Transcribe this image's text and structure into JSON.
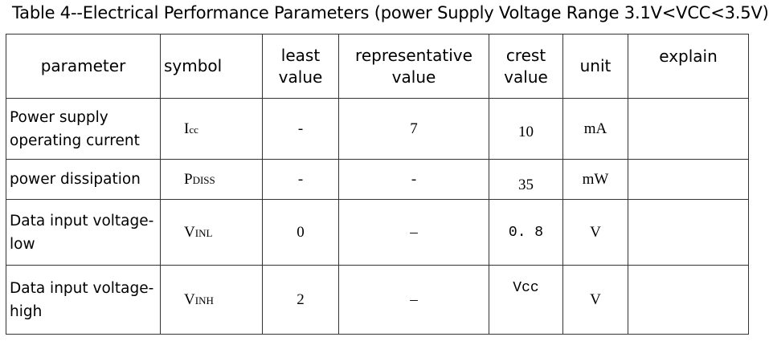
{
  "title": "Table 4--Electrical Performance Parameters (power Supply Voltage Range 3.1V<VCC<3.5V)",
  "headers": {
    "parameter": "parameter",
    "symbol": "symbol",
    "least_value": "least value",
    "representative_value": "representative value",
    "crest_value": "crest value",
    "unit": "unit",
    "explain": "explain"
  },
  "rows": [
    {
      "parameter": "Power  supply operating current",
      "symbol_main": "I",
      "symbol_sub": "cc",
      "least": "-",
      "representative": "7",
      "crest": "10",
      "unit": "mA",
      "explain": ""
    },
    {
      "parameter": "power dissipation",
      "symbol_main": "P",
      "symbol_sub": "DISS",
      "least": "-",
      "representative": "-",
      "crest": "35",
      "unit": "mW",
      "explain": ""
    },
    {
      "parameter": "Data input voltage-low",
      "symbol_main": "V",
      "symbol_sub": "INL",
      "least": "0",
      "representative": "–",
      "crest": "0. 8",
      "unit": "V",
      "explain": ""
    },
    {
      "parameter": "Data input voltage-high",
      "symbol_main": "V",
      "symbol_sub": "INH",
      "least": "2",
      "representative": "–",
      "crest": "Vcc",
      "unit": "V",
      "explain": ""
    }
  ]
}
